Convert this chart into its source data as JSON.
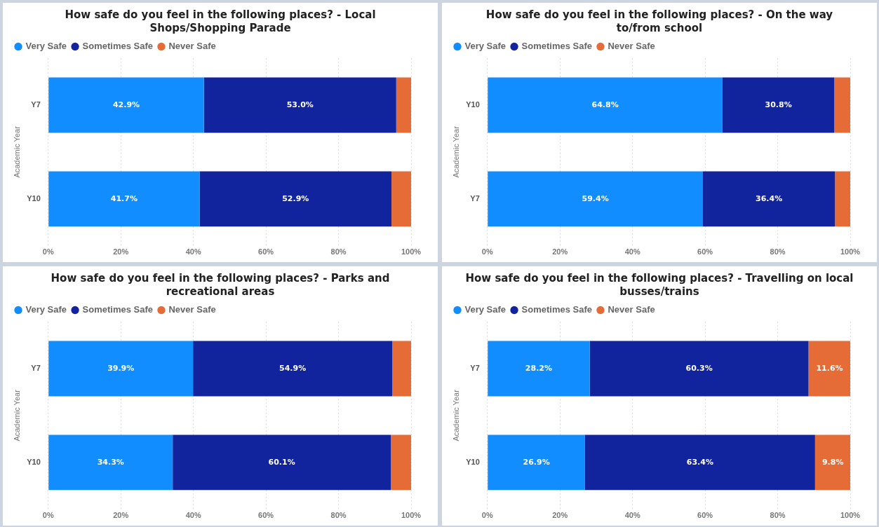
{
  "chart_data": [
    {
      "type": "bar",
      "orientation": "horizontal",
      "stacked": true,
      "title": "How safe do you feel in the following places? - Local Shops/Shopping Parade",
      "ylabel": "Academic Year",
      "categories": [
        "Y7",
        "Y10"
      ],
      "legend": "top left",
      "grid": "x",
      "xlim": [
        0,
        100
      ],
      "xticks": [
        {
          "value": 0,
          "label": "0%"
        },
        {
          "value": 20,
          "label": "20%"
        },
        {
          "value": 40,
          "label": "40%"
        },
        {
          "value": 60,
          "label": "60%"
        },
        {
          "value": 80,
          "label": "80%"
        },
        {
          "value": 100,
          "label": "100%"
        }
      ],
      "series": [
        {
          "name": "Very Safe",
          "color": "#118dff",
          "values": [
            42.9,
            41.7
          ],
          "value_labels": [
            "42.9%",
            "41.7%"
          ]
        },
        {
          "name": "Sometimes Safe",
          "color": "#12239e",
          "values": [
            53.0,
            52.9
          ],
          "value_labels": [
            "53.0%",
            "52.9%"
          ]
        },
        {
          "name": "Never Safe",
          "color": "#e66c37",
          "values": [
            4.1,
            5.4
          ],
          "value_labels": [
            null,
            null
          ]
        }
      ]
    },
    {
      "type": "bar",
      "orientation": "horizontal",
      "stacked": true,
      "title": "How safe do you feel in the following places? - On the way to/from school",
      "ylabel": "Academic Year",
      "categories": [
        "Y10",
        "Y7"
      ],
      "legend": "top left",
      "grid": "x",
      "xlim": [
        0,
        100
      ],
      "xticks": [
        {
          "value": 0,
          "label": "0%"
        },
        {
          "value": 20,
          "label": "20%"
        },
        {
          "value": 40,
          "label": "40%"
        },
        {
          "value": 60,
          "label": "60%"
        },
        {
          "value": 80,
          "label": "80%"
        },
        {
          "value": 100,
          "label": "100%"
        }
      ],
      "series": [
        {
          "name": "Very Safe",
          "color": "#118dff",
          "values": [
            64.8,
            59.4
          ],
          "value_labels": [
            "64.8%",
            "59.4%"
          ]
        },
        {
          "name": "Sometimes Safe",
          "color": "#12239e",
          "values": [
            30.8,
            36.4
          ],
          "value_labels": [
            "30.8%",
            "36.4%"
          ]
        },
        {
          "name": "Never Safe",
          "color": "#e66c37",
          "values": [
            4.4,
            4.2
          ],
          "value_labels": [
            null,
            null
          ]
        }
      ]
    },
    {
      "type": "bar",
      "orientation": "horizontal",
      "stacked": true,
      "title": "How safe do you feel in the following places? - Parks and recreational areas",
      "ylabel": "Academic Year",
      "categories": [
        "Y7",
        "Y10"
      ],
      "legend": "top left",
      "grid": "x",
      "xlim": [
        0,
        100
      ],
      "xticks": [
        {
          "value": 0,
          "label": "0%"
        },
        {
          "value": 20,
          "label": "20%"
        },
        {
          "value": 40,
          "label": "40%"
        },
        {
          "value": 60,
          "label": "60%"
        },
        {
          "value": 80,
          "label": "80%"
        },
        {
          "value": 100,
          "label": "100%"
        }
      ],
      "series": [
        {
          "name": "Very Safe",
          "color": "#118dff",
          "values": [
            39.9,
            34.3
          ],
          "value_labels": [
            "39.9%",
            "34.3%"
          ]
        },
        {
          "name": "Sometimes Safe",
          "color": "#12239e",
          "values": [
            54.9,
            60.1
          ],
          "value_labels": [
            "54.9%",
            "60.1%"
          ]
        },
        {
          "name": "Never Safe",
          "color": "#e66c37",
          "values": [
            5.2,
            5.6
          ],
          "value_labels": [
            null,
            null
          ]
        }
      ]
    },
    {
      "type": "bar",
      "orientation": "horizontal",
      "stacked": true,
      "title": "How safe do you feel in the following places? - Travelling on local busses/trains",
      "ylabel": "Academic Year",
      "categories": [
        "Y7",
        "Y10"
      ],
      "legend": "top left",
      "grid": "x",
      "xlim": [
        0,
        100
      ],
      "xticks": [
        {
          "value": 0,
          "label": "0%"
        },
        {
          "value": 20,
          "label": "20%"
        },
        {
          "value": 40,
          "label": "40%"
        },
        {
          "value": 60,
          "label": "60%"
        },
        {
          "value": 80,
          "label": "80%"
        },
        {
          "value": 100,
          "label": "100%"
        }
      ],
      "series": [
        {
          "name": "Very Safe",
          "color": "#118dff",
          "values": [
            28.2,
            26.9
          ],
          "value_labels": [
            "28.2%",
            "26.9%"
          ]
        },
        {
          "name": "Sometimes Safe",
          "color": "#12239e",
          "values": [
            60.3,
            63.4
          ],
          "value_labels": [
            "60.3%",
            "63.4%"
          ]
        },
        {
          "name": "Never Safe",
          "color": "#e66c37",
          "values": [
            11.6,
            9.8
          ],
          "value_labels": [
            "11.6%",
            "9.8%"
          ]
        }
      ]
    }
  ]
}
